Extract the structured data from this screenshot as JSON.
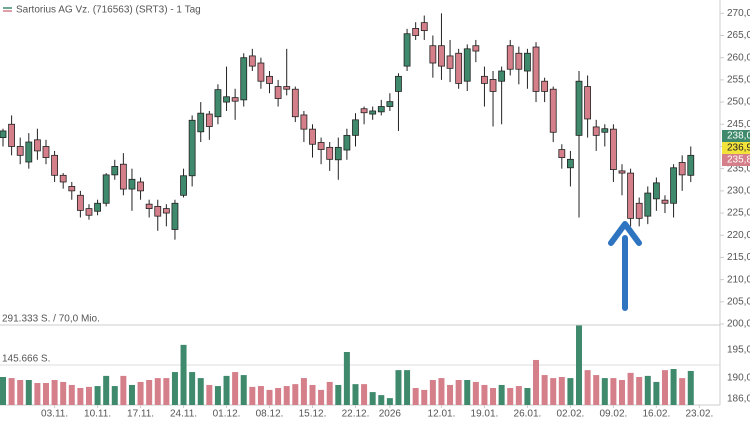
{
  "chart_data": {
    "type": "candlestick",
    "title": "Sartorius AG Vz. (716563) (SRT3) - 1 Tag",
    "open": [
      242,
      245,
      240,
      236.5,
      241.5,
      240,
      238,
      233.5,
      231,
      229,
      226,
      225.4,
      227.2,
      233.6,
      236,
      230.4,
      232,
      227,
      226.5,
      226,
      221.3,
      229,
      233.4,
      243.3,
      247.3,
      246.7,
      250,
      251,
      250.5,
      260.4,
      258.8,
      255.8,
      253.5,
      253.5,
      252.9,
      247.1,
      243.9,
      240.9,
      239.8,
      237,
      239.2,
      242.5,
      248.5,
      247.3,
      247.8,
      249,
      252.4,
      258.1,
      266.6,
      267.9,
      262.7,
      262.7,
      260.4,
      261,
      254.7,
      262.7,
      255.8,
      255.1,
      254.7,
      262.7,
      261,
      257,
      262.4,
      254.7,
      252.9,
      239.3,
      235.2,
      242.5,
      253.5,
      244.4,
      243.2,
      243.9,
      234.5,
      234,
      227.2,
      224.3,
      228.2,
      227.9,
      227.2,
      236.4,
      233.5
    ],
    "high": [
      244,
      247,
      242,
      243,
      244,
      241.5,
      239,
      234,
      232,
      230,
      227,
      228,
      234,
      237,
      238.5,
      235,
      233,
      228,
      228,
      227,
      228,
      235,
      247,
      250,
      248,
      254,
      258,
      253,
      261,
      262,
      260,
      257,
      255,
      262,
      253.5,
      248,
      245,
      242,
      241,
      242,
      244,
      247.5,
      249,
      249,
      250.5,
      252,
      256.5,
      266.5,
      268,
      269.5,
      265,
      270,
      264,
      262,
      263,
      264,
      258,
      257,
      258,
      264,
      262.5,
      262,
      263.5,
      255.5,
      253.5,
      240.5,
      239,
      257,
      256,
      246,
      245,
      245,
      236,
      235,
      228.5,
      231,
      233,
      229,
      236,
      238,
      240
    ],
    "low": [
      240,
      238,
      236,
      235,
      237,
      236,
      232,
      230.5,
      228,
      224,
      223.5,
      224.5,
      226.5,
      232.5,
      229,
      225.5,
      228,
      224,
      221,
      222,
      219,
      228.5,
      231,
      241,
      241.5,
      245,
      248,
      246,
      249,
      257,
      253,
      252,
      249,
      251.5,
      245.5,
      241,
      237.5,
      236,
      234.5,
      232.5,
      237,
      240,
      245,
      246,
      247,
      248,
      243.5,
      257,
      264,
      264,
      255.5,
      255,
      254.5,
      253,
      252.5,
      259,
      249,
      244.5,
      245,
      256,
      254,
      253,
      250,
      250,
      241,
      235,
      231,
      224,
      242,
      239,
      240,
      232,
      229,
      222,
      222,
      222.5,
      225.5,
      225,
      224,
      230,
      232
    ],
    "close": [
      243.5,
      240,
      238,
      241,
      239,
      237.5,
      233.5,
      232,
      230,
      225.6,
      224.5,
      227.2,
      233.6,
      235.5,
      230.4,
      232.6,
      230,
      226,
      224.3,
      225,
      227.2,
      233.4,
      245.9,
      247.5,
      244.5,
      252.8,
      251.2,
      250.2,
      260,
      258.1,
      254.7,
      254.2,
      250.8,
      252.9,
      246.7,
      243.9,
      240.5,
      239.3,
      237.1,
      239.8,
      242.5,
      246,
      247.6,
      248,
      249,
      250.1,
      255.8,
      265.4,
      265,
      266.1,
      258.8,
      258.1,
      257.6,
      254.2,
      262,
      261.5,
      254.2,
      252.4,
      257,
      257.4,
      257.4,
      261,
      252.4,
      252.4,
      243.2,
      237.5,
      237.1,
      254.7,
      246.2,
      242.5,
      244,
      234.8,
      234,
      223.8,
      223.8,
      229.5,
      231.8,
      227.2,
      235.2,
      233.6,
      238
    ],
    "volume": [
      102000,
      98000,
      91000,
      91000,
      80000,
      80000,
      91000,
      84000,
      73000,
      62000,
      66000,
      69000,
      106000,
      69000,
      106000,
      73000,
      84000,
      91000,
      98000,
      98000,
      120000,
      219000,
      120000,
      98000,
      73000,
      69000,
      106000,
      120000,
      109000,
      66000,
      69000,
      55000,
      62000,
      69000,
      76000,
      98000,
      73000,
      55000,
      84000,
      73000,
      193000,
      76000,
      76000,
      47000,
      36000,
      25000,
      127000,
      127000,
      62000,
      55000,
      91000,
      98000,
      73000,
      91000,
      91000,
      84000,
      73000,
      62000,
      73000,
      62000,
      69000,
      62000,
      164000,
      109000,
      98000,
      102000,
      98000,
      291333,
      127000,
      109000,
      98000,
      98000,
      91000,
      117000,
      102000,
      106000,
      84000,
      127000,
      131000,
      98000,
      124000
    ],
    "up_color": "#3f8a6c",
    "down_color": "#d57f8a",
    "xlim": [
      -0.35,
      83.4
    ],
    "xticks": [
      {
        "value": 6,
        "label": "03.11."
      },
      {
        "value": 11,
        "label": "10.11."
      },
      {
        "value": 16,
        "label": "17.11."
      },
      {
        "value": 21,
        "label": "24.11."
      },
      {
        "value": 26,
        "label": "01.12."
      },
      {
        "value": 31,
        "label": "08.12."
      },
      {
        "value": 36,
        "label": "15.12."
      },
      {
        "value": 41,
        "label": "22.12."
      },
      {
        "value": 45,
        "label": "2026"
      },
      {
        "value": 51,
        "label": "12.01."
      },
      {
        "value": 56,
        "label": "19.01."
      },
      {
        "value": 61,
        "label": "26.01."
      },
      {
        "value": 66,
        "label": "02.02."
      },
      {
        "value": 71,
        "label": "09.02."
      },
      {
        "value": 76,
        "label": "16.02."
      },
      {
        "value": 81,
        "label": "23.02."
      }
    ],
    "ylim": [
      200,
      273
    ],
    "yticks": [
      {
        "value": 200,
        "label": "200,0"
      },
      {
        "value": 205,
        "label": "205,0"
      },
      {
        "value": 210,
        "label": "210,0"
      },
      {
        "value": 215,
        "label": "215,0"
      },
      {
        "value": 220,
        "label": "220,0"
      },
      {
        "value": 225,
        "label": "225,0"
      },
      {
        "value": 230,
        "label": "230,0"
      },
      {
        "value": 235,
        "label": "235,0"
      },
      {
        "value": 240,
        "label": "240,0"
      },
      {
        "value": 245,
        "label": "245,0"
      },
      {
        "value": 250,
        "label": "250,0"
      },
      {
        "value": 255,
        "label": "255,0"
      },
      {
        "value": 260,
        "label": "260,0"
      },
      {
        "value": 265,
        "label": "265,0"
      },
      {
        "value": 270,
        "label": "270,0"
      }
    ],
    "volume_lim": [
      0,
      291333
    ],
    "volume_ticks": [
      {
        "value": 291333,
        "label": "291.333 S. / 70,0 Mio."
      },
      {
        "value": 145666,
        "label": "145.666 S."
      }
    ],
    "volume_axis_labels": [
      "195,0",
      "190,0",
      "186,0"
    ],
    "price_markers": [
      {
        "value": 238.0,
        "label": "238,0",
        "color": "#3f8a6c"
      },
      {
        "value": 236.9,
        "label": "236,9",
        "color": "#f2e23a"
      },
      {
        "value": 235.8,
        "label": "235,8",
        "color": "#d57f8a"
      }
    ]
  }
}
